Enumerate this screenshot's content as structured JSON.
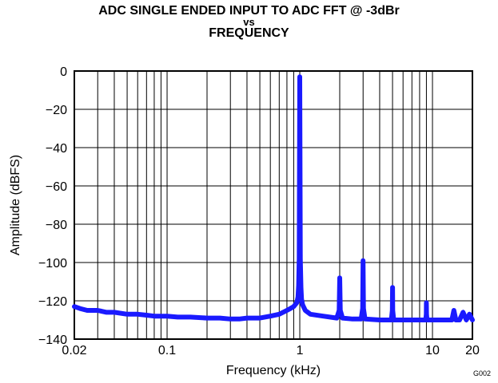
{
  "chart_data": {
    "type": "line",
    "title_lines": [
      "ADC SINGLE ENDED INPUT TO ADC FFT @ -3dBr",
      "vs",
      "FREQUENCY"
    ],
    "xlabel": "Frequency (kHz)",
    "ylabel": "Amplitude (dBFS)",
    "x_scale": "log",
    "xlim": [
      0.02,
      20
    ],
    "ylim": [
      -140,
      0
    ],
    "x_ticks": [
      {
        "value": 0.02,
        "label": "0.02"
      },
      {
        "value": 0.1,
        "label": "0.1"
      },
      {
        "value": 1,
        "label": "1"
      },
      {
        "value": 10,
        "label": "10"
      },
      {
        "value": 20,
        "label": "20"
      }
    ],
    "y_ticks": [
      {
        "value": 0,
        "label": "0"
      },
      {
        "value": -20,
        "label": "−20"
      },
      {
        "value": -40,
        "label": "−40"
      },
      {
        "value": -60,
        "label": "−60"
      },
      {
        "value": -80,
        "label": "−80"
      },
      {
        "value": -100,
        "label": "−100"
      },
      {
        "value": -120,
        "label": "−120"
      },
      {
        "value": -140,
        "label": "−140"
      }
    ],
    "grid": true,
    "line_color": "#1a1aff",
    "series": [
      {
        "x": [
          0.02,
          0.022,
          0.025,
          0.03,
          0.035,
          0.04,
          0.05,
          0.06,
          0.07,
          0.08,
          0.1,
          0.12,
          0.15,
          0.2,
          0.25,
          0.3,
          0.35,
          0.4,
          0.5,
          0.6,
          0.7,
          0.8,
          0.85,
          0.9,
          0.95,
          0.97,
          0.98,
          0.99,
          1.0,
          1.01,
          1.02,
          1.03,
          1.05,
          1.1,
          1.2,
          1.5,
          1.9,
          1.98,
          2.0,
          2.02,
          2.1,
          2.5,
          2.9,
          2.98,
          3.0,
          3.02,
          3.1,
          4.0,
          4.9,
          4.98,
          5.0,
          5.02,
          5.1,
          7.0,
          8.9,
          8.98,
          9.0,
          9.02,
          9.1,
          12,
          14,
          14.5,
          15,
          16,
          17,
          18,
          19,
          20
        ],
        "y": [
          -123,
          -124,
          -125,
          -125,
          -126,
          -126,
          -127,
          -127,
          -127.5,
          -128,
          -128,
          -128.5,
          -128.5,
          -129,
          -129,
          -129.5,
          -129.5,
          -129,
          -129,
          -128,
          -127,
          -125,
          -124,
          -123,
          -121,
          -118,
          -112,
          -98,
          -3,
          -98,
          -113,
          -119,
          -122,
          -125,
          -127,
          -128,
          -129,
          -125,
          -108,
          -125,
          -129,
          -129.5,
          -129.5,
          -124,
          -99,
          -124,
          -129.5,
          -130,
          -130,
          -125,
          -113,
          -125,
          -130,
          -130,
          -130,
          -127,
          -121,
          -127,
          -130,
          -130,
          -130,
          -125,
          -130,
          -130,
          -126,
          -130,
          -127,
          -130
        ]
      }
    ],
    "figure_code": "G002"
  }
}
